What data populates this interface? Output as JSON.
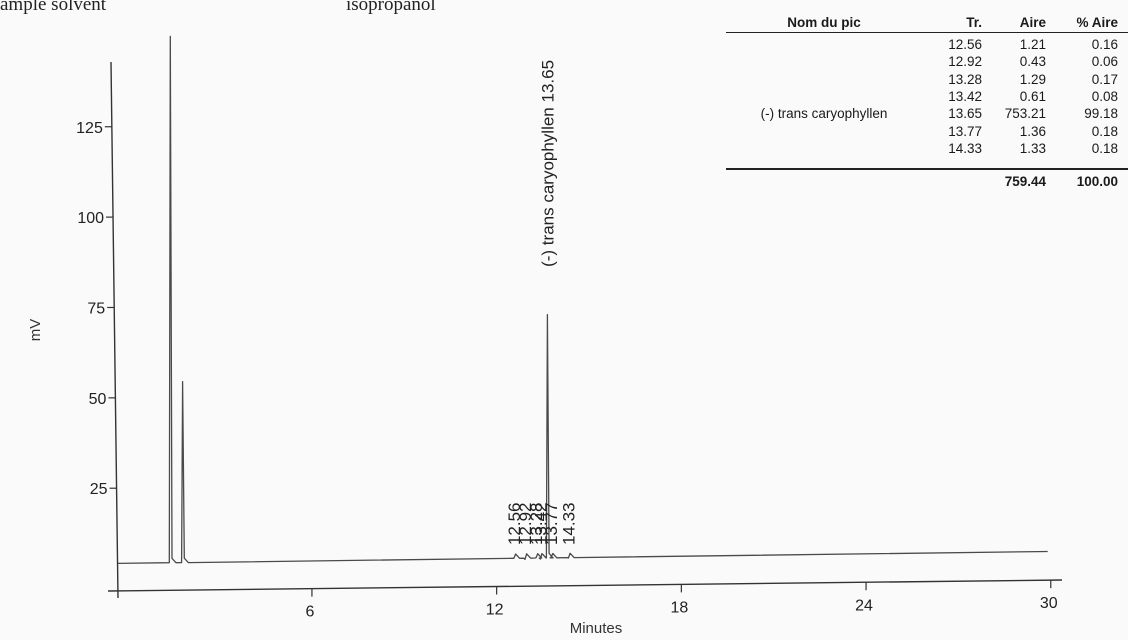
{
  "notes": {
    "left": "ample solvent",
    "middle": "isopropanol"
  },
  "chart_data": {
    "type": "line",
    "title": "",
    "xlabel": "Minutes",
    "ylabel": "mV",
    "xlim": [
      -0.3,
      30.3
    ],
    "ylim": [
      -1.5,
      149
    ],
    "x_ticks": [
      6,
      12,
      18,
      24,
      30
    ],
    "y_ticks": [
      25,
      50,
      75,
      100,
      125
    ],
    "grid": false,
    "baseline": {
      "start_mv": 4.2,
      "end_mv": 7.5
    },
    "series": [
      {
        "peaks": [
          {
            "time": 1.4,
            "height_mv": 150
          },
          {
            "time": 1.8,
            "height_mv": 54.5
          },
          {
            "time": 12.56,
            "height_mv": 5.6
          },
          {
            "time": 12.92,
            "height_mv": 5.3
          },
          {
            "time": 13.28,
            "height_mv": 5.8
          },
          {
            "time": 13.42,
            "height_mv": 5.4
          },
          {
            "time": 13.65,
            "height_mv": 73
          },
          {
            "time": 13.77,
            "height_mv": 6.0
          },
          {
            "time": 14.33,
            "height_mv": 5.7
          }
        ]
      }
    ],
    "peak_labels": [
      {
        "time": 12.56,
        "text": "12.56"
      },
      {
        "time": 12.92,
        "text": "12.92"
      },
      {
        "time": 13.28,
        "text": "13.28"
      },
      {
        "time": 13.42,
        "text": "13.42"
      },
      {
        "time": 13.77,
        "text": "13.77"
      },
      {
        "time": 14.33,
        "text": "14.33"
      },
      {
        "time": 13.65,
        "text": "(-) trans caryophyllen 13.65"
      }
    ]
  },
  "peak_table": {
    "headers": [
      "Nom du pic",
      "Tr.",
      "Aire",
      "% Aire"
    ],
    "rows": [
      {
        "name": "",
        "tr": "12.56",
        "area": "1.21",
        "pct": "0.16"
      },
      {
        "name": "",
        "tr": "12.92",
        "area": "0.43",
        "pct": "0.06"
      },
      {
        "name": "",
        "tr": "13.28",
        "area": "1.29",
        "pct": "0.17"
      },
      {
        "name": "",
        "tr": "13.42",
        "area": "0.61",
        "pct": "0.08"
      },
      {
        "name": "(-) trans caryophyllen",
        "tr": "13.65",
        "area": "753.21",
        "pct": "99.18"
      },
      {
        "name": "",
        "tr": "13.77",
        "area": "1.36",
        "pct": "0.18"
      },
      {
        "name": "",
        "tr": "14.33",
        "area": "1.33",
        "pct": "0.18"
      }
    ],
    "total": {
      "area": "759.44",
      "pct": "100.00"
    }
  }
}
